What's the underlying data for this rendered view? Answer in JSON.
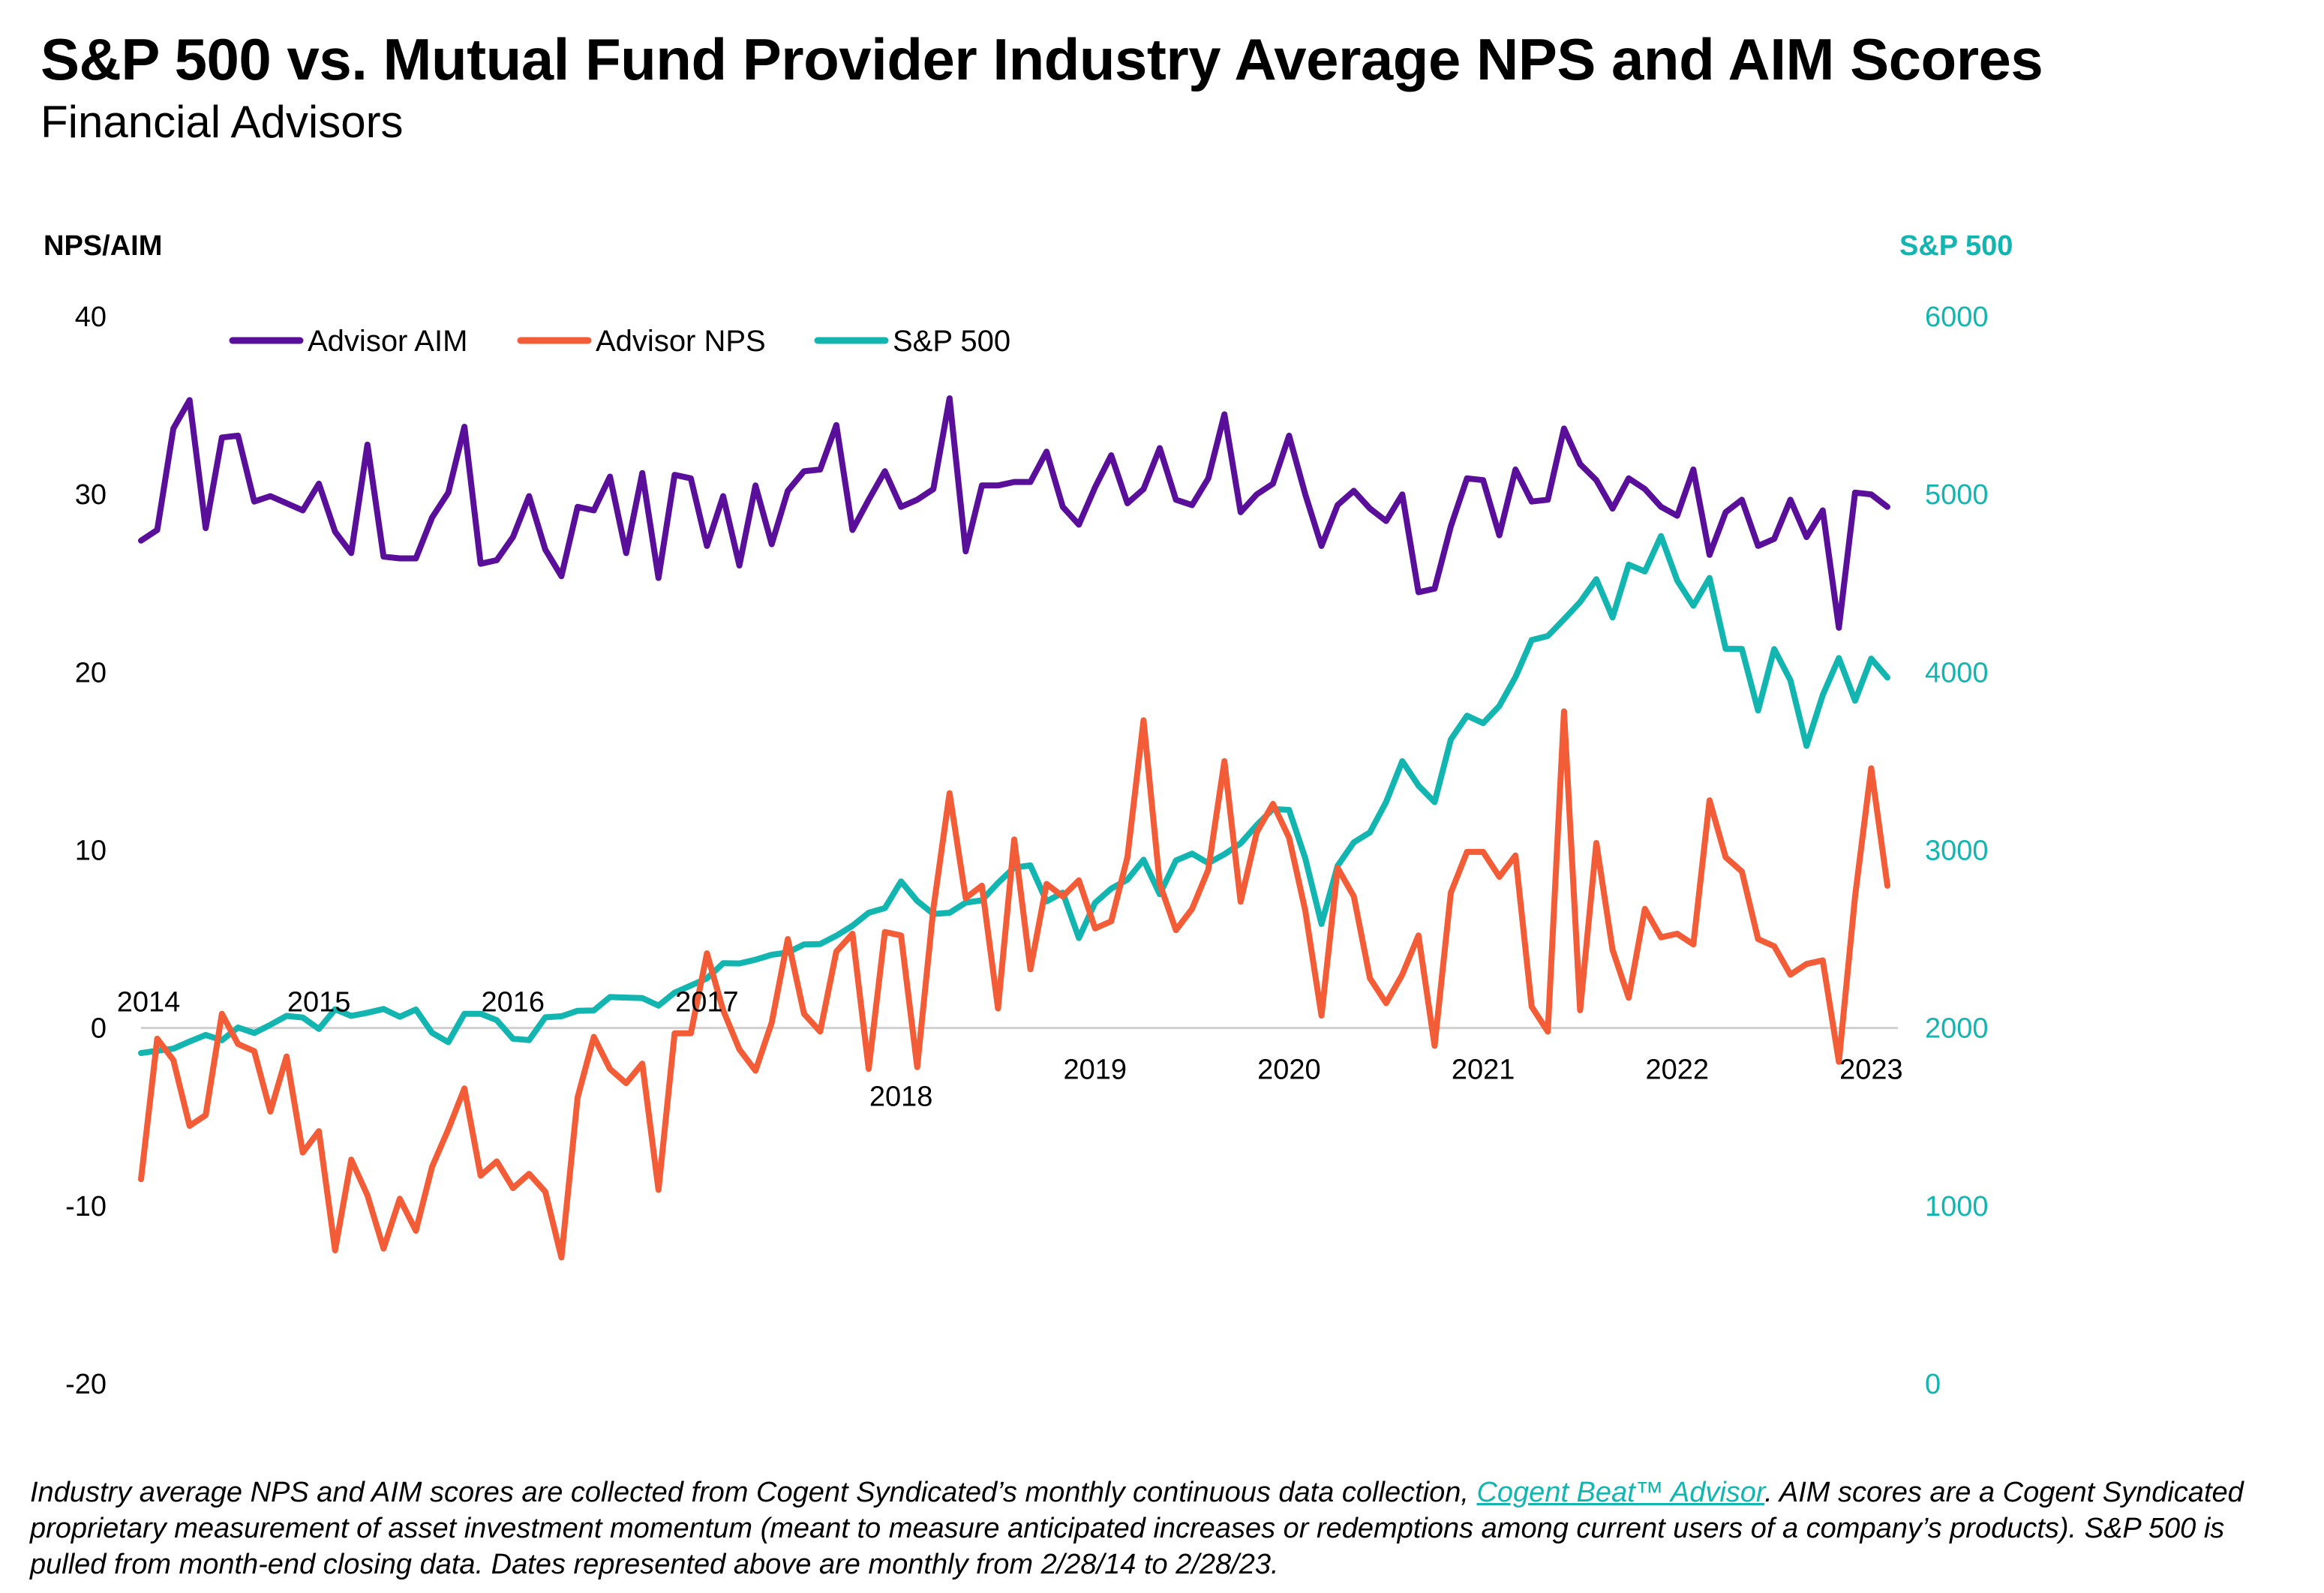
{
  "header": {
    "title": "S&P 500 vs. Mutual Fund Provider Industry Average NPS and AIM Scores",
    "subtitle": "Financial Advisors"
  },
  "colors": {
    "aim": "#5a0f9a",
    "nps": "#f25c36",
    "sp500": "#13b5b0",
    "baseline": "#d0d0d0"
  },
  "footnote": {
    "part1": "Industry average NPS and AIM scores are collected from Cogent Syndicated’s monthly continuous data collection, ",
    "link": "Cogent Beat™ Advisor",
    "part2": ". AIM scores are a Cogent Syndicated proprietary measurement of asset investment momentum (meant to measure anticipated increases or redemptions among current users of a company’s products). S&P 500 is pulled from month-end closing data. Dates represented above are monthly from 2/28/14 to 2/28/23."
  },
  "chart_data": {
    "type": "line",
    "ylabel_left": "NPS/AIM",
    "ylabel_right": "S&P 500",
    "ylim_left": [
      -20,
      40
    ],
    "yticks_left": [
      40,
      30,
      20,
      10,
      0,
      -10,
      -20
    ],
    "ylim_right": [
      0,
      6000
    ],
    "yticks_right": [
      6000,
      5000,
      4000,
      3000,
      2000,
      1000,
      0
    ],
    "legend_position": "top-left",
    "grid": false,
    "year_labels": [
      {
        "label": "2014",
        "index": 0,
        "offset": "above"
      },
      {
        "label": "2015",
        "index": 11,
        "offset": "above"
      },
      {
        "label": "2016",
        "index": 23,
        "offset": "above"
      },
      {
        "label": "2017",
        "index": 35,
        "offset": "above"
      },
      {
        "label": "2018",
        "index": 47,
        "offset": "below-far"
      },
      {
        "label": "2019",
        "index": 59,
        "offset": "below"
      },
      {
        "label": "2020",
        "index": 71,
        "offset": "below"
      },
      {
        "label": "2021",
        "index": 83,
        "offset": "below"
      },
      {
        "label": "2022",
        "index": 95,
        "offset": "below"
      },
      {
        "label": "2023",
        "index": 107,
        "offset": "below"
      }
    ],
    "series": [
      {
        "name": "Advisor AIM",
        "axis": "left",
        "values": [
          27.4,
          28.0,
          33.7,
          35.3,
          28.1,
          33.2,
          33.3,
          29.6,
          29.9,
          29.5,
          29.1,
          30.6,
          27.9,
          26.7,
          32.8,
          26.5,
          26.4,
          26.4,
          28.7,
          30.1,
          33.8,
          26.1,
          26.3,
          27.6,
          29.9,
          26.9,
          25.4,
          29.3,
          29.1,
          31.0,
          26.7,
          31.2,
          25.3,
          31.1,
          30.9,
          27.1,
          29.9,
          26.0,
          30.5,
          27.2,
          30.2,
          31.3,
          31.4,
          33.9,
          28.0,
          29.7,
          31.3,
          29.3,
          29.7,
          30.3,
          35.4,
          26.8,
          30.5,
          30.5,
          30.7,
          30.7,
          32.4,
          29.3,
          28.3,
          30.4,
          32.2,
          29.5,
          30.3,
          32.6,
          29.7,
          29.4,
          30.9,
          34.5,
          29.0,
          30.0,
          30.6,
          33.3,
          30.0,
          27.1,
          29.4,
          30.2,
          29.2,
          28.5,
          30.0,
          24.5,
          24.7,
          28.2,
          30.9,
          30.8,
          27.7,
          31.4,
          29.6,
          29.7,
          33.7,
          31.7,
          30.8,
          29.2,
          30.9,
          30.3,
          29.3,
          28.8,
          31.4,
          26.6,
          29.0,
          29.7,
          27.1,
          27.5,
          29.7,
          27.6,
          29.1,
          22.5,
          30.1,
          30.0,
          29.3
        ]
      },
      {
        "name": "Advisor NPS",
        "axis": "left",
        "values": [
          -8.5,
          -0.6,
          -1.8,
          -5.5,
          -4.9,
          0.8,
          -0.9,
          -1.3,
          -4.7,
          -1.6,
          -7.0,
          -5.8,
          -12.5,
          -7.4,
          -9.4,
          -12.4,
          -9.6,
          -11.4,
          -7.8,
          -5.7,
          -3.4,
          -8.3,
          -7.5,
          -9.0,
          -8.2,
          -9.2,
          -12.9,
          -3.9,
          -0.5,
          -2.3,
          -3.1,
          -2.0,
          -9.1,
          -0.3,
          -0.3,
          4.2,
          1.0,
          -1.2,
          -2.4,
          0.3,
          5.0,
          0.8,
          -0.2,
          4.3,
          5.3,
          -2.3,
          5.4,
          5.2,
          -2.2,
          6.7,
          13.2,
          7.3,
          8.0,
          1.1,
          10.6,
          3.3,
          8.1,
          7.4,
          8.3,
          5.6,
          6.0,
          9.6,
          17.3,
          8.1,
          5.5,
          6.7,
          8.9,
          15.0,
          7.1,
          11.0,
          12.6,
          10.7,
          6.6,
          0.7,
          9.0,
          7.4,
          2.8,
          1.4,
          3.0,
          5.2,
          -1.0,
          7.6,
          9.9,
          9.9,
          8.5,
          9.7,
          1.2,
          -0.2,
          17.8,
          1.0,
          10.4,
          4.4,
          1.7,
          6.7,
          5.1,
          5.3,
          4.7,
          12.8,
          9.6,
          8.8,
          5.0,
          4.6,
          3.0,
          3.6,
          3.8,
          -1.9,
          7.4,
          14.6,
          8.0
        ]
      },
      {
        "name": "S&P 500",
        "axis": "right",
        "values": [
          1859,
          1872,
          1884,
          1924,
          1961,
          1931,
          2003,
          1972,
          2018,
          2068,
          2059,
          1995,
          2105,
          2068,
          2086,
          2107,
          2063,
          2104,
          1973,
          1920,
          2080,
          2080,
          2044,
          1940,
          1932,
          2060,
          2066,
          2097,
          2099,
          2174,
          2171,
          2168,
          2126,
          2199,
          2239,
          2279,
          2364,
          2363,
          2384,
          2412,
          2424,
          2470,
          2472,
          2519,
          2575,
          2648,
          2674,
          2824,
          2714,
          2641,
          2648,
          2705,
          2718,
          2816,
          2902,
          2914,
          2712,
          2761,
          2506,
          2704,
          2784,
          2834,
          2946,
          2752,
          2942,
          2980,
          2927,
          2977,
          3038,
          3141,
          3231,
          3226,
          2954,
          2585,
          2912,
          3044,
          3100,
          3271,
          3500,
          3363,
          3270,
          3622,
          3756,
          3714,
          3811,
          3973,
          4181,
          4204,
          4298,
          4395,
          4523,
          4308,
          4605,
          4567,
          4766,
          4516,
          4374,
          4530,
          4132,
          4131,
          3785,
          4130,
          3955,
          3586,
          3872,
          4080,
          3840,
          4077,
          3970
        ]
      }
    ]
  }
}
